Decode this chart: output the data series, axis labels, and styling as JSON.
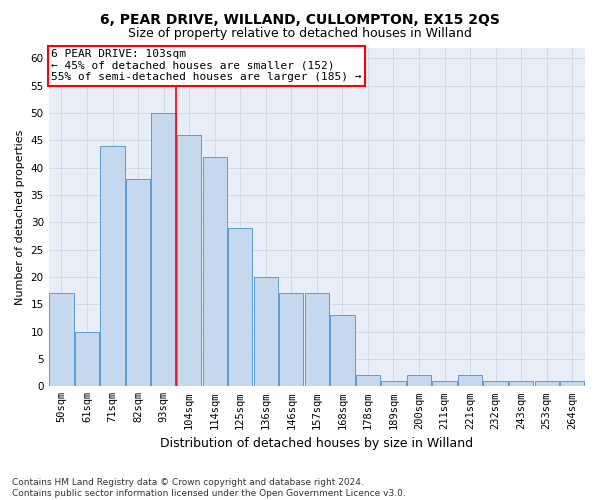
{
  "title1": "6, PEAR DRIVE, WILLAND, CULLOMPTON, EX15 2QS",
  "title2": "Size of property relative to detached houses in Willand",
  "xlabel": "Distribution of detached houses by size in Willand",
  "ylabel": "Number of detached properties",
  "bar_labels": [
    "50sqm",
    "61sqm",
    "71sqm",
    "82sqm",
    "93sqm",
    "104sqm",
    "114sqm",
    "125sqm",
    "136sqm",
    "146sqm",
    "157sqm",
    "168sqm",
    "178sqm",
    "189sqm",
    "200sqm",
    "211sqm",
    "221sqm",
    "232sqm",
    "243sqm",
    "253sqm",
    "264sqm"
  ],
  "bar_values": [
    17,
    10,
    44,
    38,
    50,
    46,
    42,
    29,
    20,
    17,
    17,
    13,
    2,
    1,
    2,
    1,
    2,
    1,
    1,
    1,
    1
  ],
  "bar_color": "#c5d8ed",
  "bar_edge_color": "#5b9bd5",
  "annotation_box_text": "6 PEAR DRIVE: 103sqm\n← 45% of detached houses are smaller (152)\n55% of semi-detached houses are larger (185) →",
  "ylim": [
    0,
    62
  ],
  "yticks": [
    0,
    5,
    10,
    15,
    20,
    25,
    30,
    35,
    40,
    45,
    50,
    55,
    60
  ],
  "grid_color": "#cdd6e8",
  "background_color": "#e8eef7",
  "footer_text": "Contains HM Land Registry data © Crown copyright and database right 2024.\nContains public sector information licensed under the Open Government Licence v3.0.",
  "title1_fontsize": 10,
  "title2_fontsize": 9,
  "xlabel_fontsize": 9,
  "ylabel_fontsize": 8,
  "tick_fontsize": 7.5,
  "footer_fontsize": 6.5,
  "ann_fontsize": 8
}
